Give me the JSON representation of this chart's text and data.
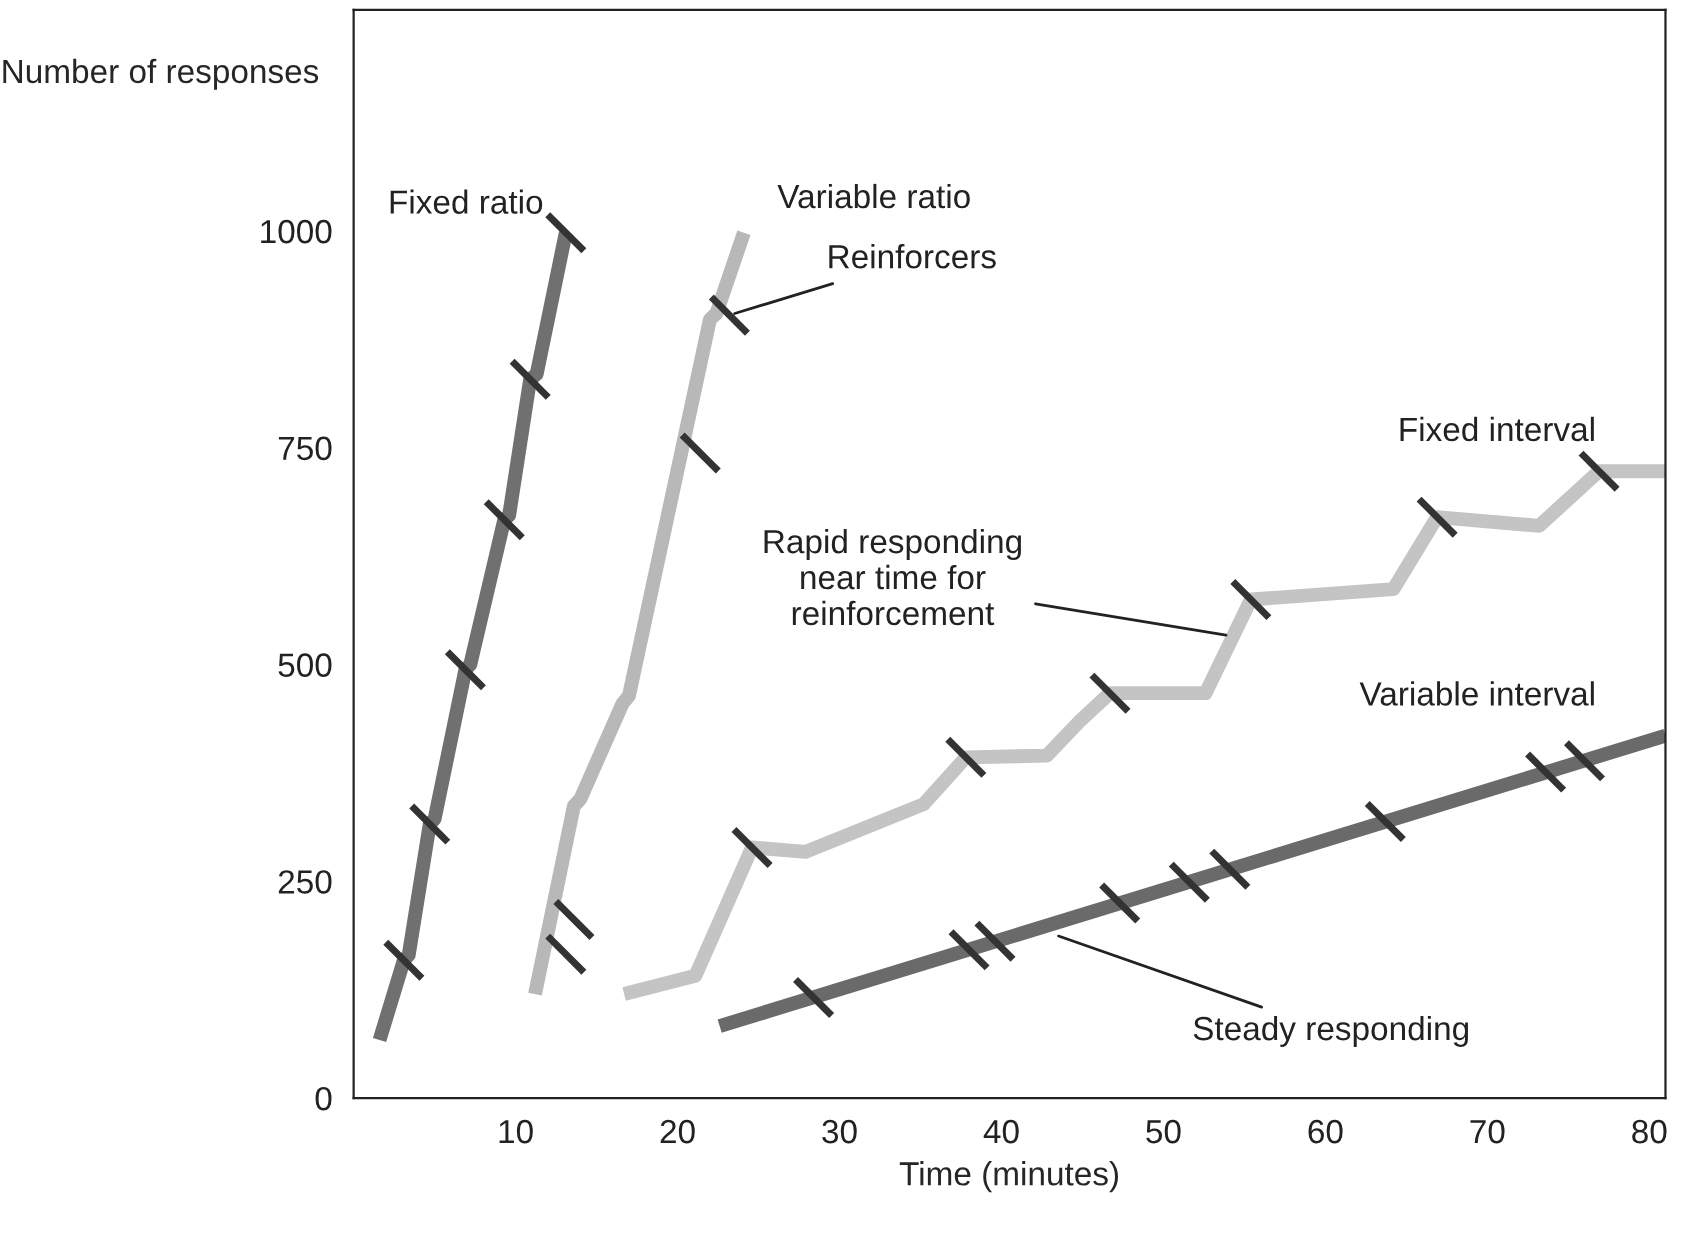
{
  "chart_data": {
    "type": "line",
    "xlabel": "Time (minutes)",
    "ylabel": "Number of responses",
    "xlim": [
      0,
      81
    ],
    "ylim": [
      0,
      1255
    ],
    "xticks": [
      10,
      20,
      30,
      40,
      50,
      60,
      70,
      80
    ],
    "yticks": [
      0,
      250,
      500,
      750,
      1000
    ],
    "grid": false,
    "legend": false,
    "series": [
      {
        "name": "Fixed ratio",
        "color": "#707070",
        "x": [
          1.6,
          3.1,
          3.4,
          4.7,
          5.0,
          6.9,
          7.2,
          9.3,
          9.6,
          10.9,
          11.3,
          13.1
        ],
        "values": [
          67,
          159,
          165,
          316,
          322,
          494,
          500,
          667,
          672,
          829,
          835,
          998
        ]
      },
      {
        "name": "Variable ratio",
        "color": "#b8b8b8",
        "x": [
          11.2,
          13.6,
          14.0,
          16.6,
          17.0,
          22.0,
          22.4,
          24.1
        ],
        "values": [
          120,
          337,
          345,
          455,
          464,
          898,
          905,
          998
        ]
      },
      {
        "name": "Fixed interval",
        "color": "#c4c4c4",
        "x": [
          16.7,
          21.1,
          24.6,
          27.9,
          35.2,
          37.8,
          42.8,
          44.9,
          46.7,
          52.6,
          55.4,
          64.2,
          66.9,
          73.2,
          76.9,
          81.0
        ],
        "values": [
          120,
          141,
          289,
          284,
          339,
          393,
          395,
          436,
          467,
          467,
          575,
          587,
          670,
          660,
          723,
          723
        ]
      },
      {
        "name": "Variable interval",
        "color": "#6a6a6a",
        "x": [
          22.6,
          81.0
        ],
        "values": [
          83,
          418
        ]
      },
      {
        "type": "scatter",
        "color": "#333333",
        "x": [
          3.1,
          4.7,
          6.9,
          9.3,
          10.9,
          13.1,
          13.1,
          13.6,
          21.4,
          23.2,
          24.6,
          37.8,
          46.7,
          55.4,
          66.9,
          76.9,
          28.4,
          38.0,
          39.6,
          47.3,
          51.6,
          54.1,
          63.7,
          73.6,
          76.0
        ],
        "values": [
          159,
          316,
          494,
          667,
          829,
          998,
          166,
          206,
          744,
          903,
          289,
          393,
          467,
          575,
          670,
          723,
          116,
          171,
          181,
          225,
          249,
          264,
          319,
          376,
          389
        ]
      }
    ],
    "annotations": [
      {
        "text": "Reinforcers",
        "x": 23.2,
        "y": 903
      },
      {
        "text": "Rapid responding\nnear time for\nreinforcement",
        "x": 54.2,
        "y": 533
      },
      {
        "text": "Steady responding",
        "x": 43.2,
        "y": 189
      }
    ]
  }
}
